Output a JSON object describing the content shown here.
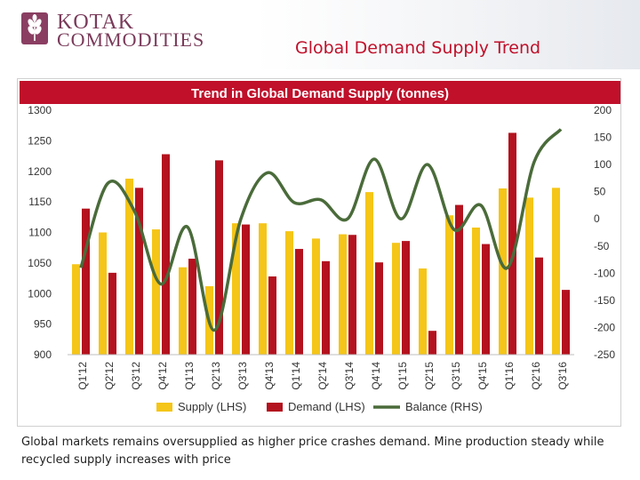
{
  "brand": {
    "line1": "KOTAK",
    "line2": "COMMODITIES",
    "color": "#7a3b5a"
  },
  "page": {
    "title": "Global Demand Supply Trend"
  },
  "caption": "Global markets remains oversupplied as higher price crashes demand. Mine production steady while recycled supply increases with price",
  "chart_data": {
    "type": "bar",
    "title": "Trend in Global Demand Supply (tonnes)",
    "title_bar_color": "#c0102a",
    "categories": [
      "Q1'12",
      "Q2'12",
      "Q3'12",
      "Q4'12",
      "Q1'13",
      "Q2'13",
      "Q3'13",
      "Q4'13",
      "Q1'14",
      "Q2'14",
      "Q3'14",
      "Q4'14",
      "Q1'15",
      "Q2'15",
      "Q3'15",
      "Q4'15",
      "Q1'16",
      "Q2'16",
      "Q3'16"
    ],
    "series": [
      {
        "name": "Supply (LHS)",
        "type": "bar",
        "axis": "left",
        "color": "#f5c518",
        "values": [
          1048,
          1100,
          1188,
          1105,
          1043,
          1012,
          1115,
          1115,
          1102,
          1090,
          1097,
          1166,
          1083,
          1041,
          1128,
          1108,
          1172,
          1157,
          1173
        ]
      },
      {
        "name": "Demand (LHS)",
        "type": "bar",
        "axis": "left",
        "color": "#b3121e",
        "values": [
          1139,
          1034,
          1173,
          1228,
          1057,
          1218,
          1113,
          1028,
          1073,
          1053,
          1096,
          1051,
          1086,
          939,
          1145,
          1081,
          1263,
          1059,
          1006
        ]
      },
      {
        "name": "Balance (RHS)",
        "type": "line",
        "axis": "right",
        "color": "#4a6b3a",
        "values": [
          -90,
          65,
          15,
          -120,
          -15,
          -205,
          0,
          85,
          30,
          35,
          0,
          110,
          0,
          100,
          -20,
          25,
          -90,
          105,
          165
        ]
      }
    ],
    "y_left": {
      "ylim": [
        900,
        1300
      ],
      "ticks": [
        900,
        950,
        1000,
        1050,
        1100,
        1150,
        1200,
        1250,
        1300
      ]
    },
    "y_right": {
      "ylim": [
        -250,
        200
      ],
      "ticks": [
        -250,
        -200,
        -150,
        -100,
        -50,
        0,
        50,
        100,
        150,
        200
      ]
    },
    "grid": false,
    "legend_position": "bottom"
  }
}
